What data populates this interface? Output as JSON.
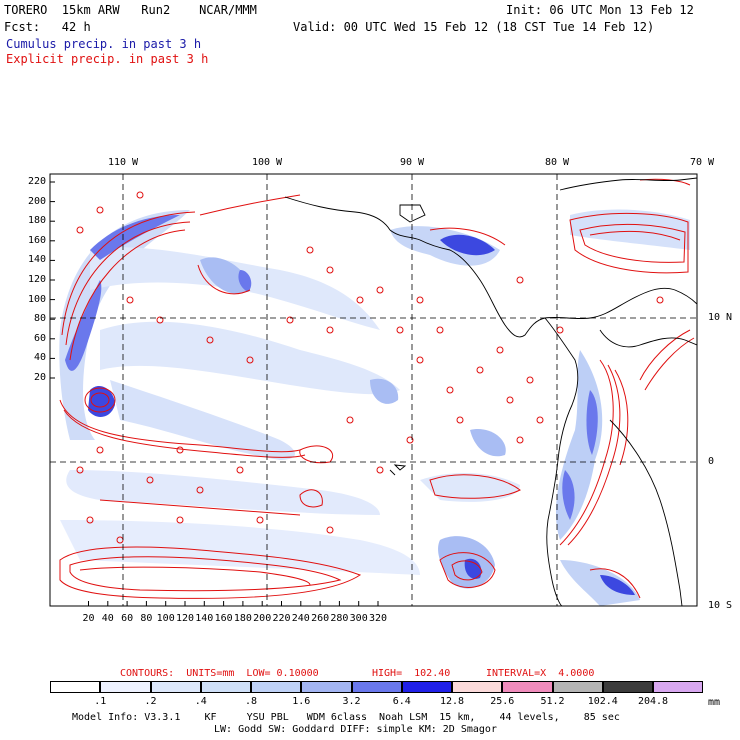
{
  "header": {
    "model_line": "TORERO  15km ARW   Run2    NCAR/MMM",
    "init_line": "Init: 06 UTC Mon 13 Feb 12",
    "fcst_line": "Fcst:   42 h",
    "valid_line": "Valid: 00 UTC Wed 15 Feb 12 (18 CST Tue 14 Feb 12)",
    "cumulus_label": "Cumulus precip. in past 3 h",
    "explicit_label": "Explicit precip. in past 3 h"
  },
  "map": {
    "top_lon_labels": [
      "110 W",
      "100 W",
      "90 W",
      "80 W",
      "70 W"
    ],
    "right_lat_labels": [
      "10 N",
      "0",
      "10 S"
    ],
    "left_y_ticks": [
      "220",
      "200",
      "180",
      "160",
      "140",
      "120",
      "100",
      "80",
      "60",
      "40",
      "20"
    ],
    "bottom_x_ticks": [
      "20",
      "40",
      "60",
      "80",
      "100",
      "120",
      "140",
      "160",
      "180",
      "200",
      "220",
      "240",
      "260",
      "280",
      "300",
      "320"
    ]
  },
  "contours_line": {
    "contours": "CONTOURS:  UNITS=mm  LOW= 0.10000",
    "high": "HIGH=  102.40",
    "interval": "INTERVAL=X  4.0000"
  },
  "legend": {
    "values": [
      ".1",
      ".2",
      ".4",
      ".8",
      "1.6",
      "3.2",
      "6.4",
      "12.8",
      "25.6",
      "51.2",
      "102.4",
      "204.8"
    ],
    "unit": "mm",
    "colors": [
      "#ffffff",
      "#eef2ff",
      "#dde8fb",
      "#cfe0f8",
      "#bfd2f7",
      "#a3b5f2",
      "#6a78ec",
      "#2020e8",
      "#fbdada",
      "#f08cbc",
      "#b4b4b4",
      "#3c3c3c",
      "#d8a8f0"
    ]
  },
  "footer": {
    "line1": "Model Info: V3.3.1    KF     YSU PBL   WDM 6class  Noah LSM  15 km,    44 levels,    85 sec",
    "line2": "LW: Godd SW: Goddard DIFF: simple KM: 2D Smagor"
  }
}
